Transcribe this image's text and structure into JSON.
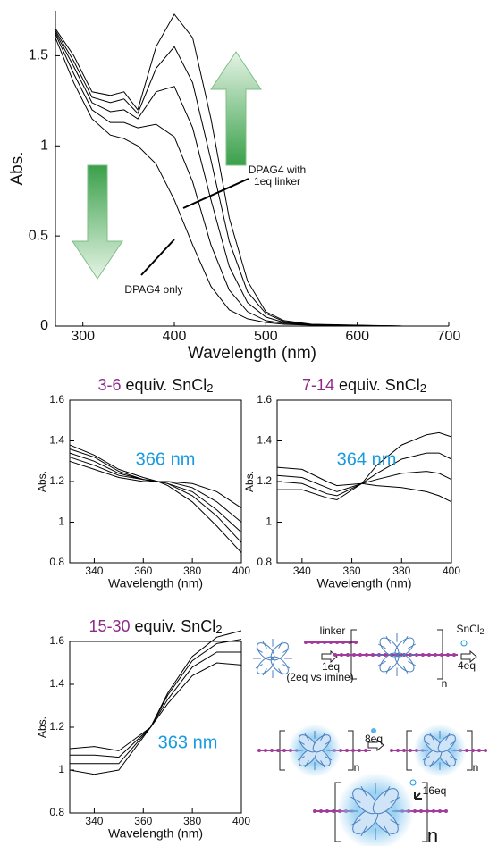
{
  "chart_data": [
    {
      "type": "line",
      "xlabel": "Wavelength (nm)",
      "ylabel": "Abs.",
      "x": [
        270,
        290,
        310,
        330,
        345,
        360,
        380,
        400,
        420,
        440,
        460,
        480,
        500,
        520,
        550,
        600,
        650,
        700
      ],
      "series": [
        {
          "color": "#000000",
          "values": [
            1.6,
            1.35,
            1.15,
            1.06,
            1.04,
            1.0,
            0.9,
            0.7,
            0.45,
            0.22,
            0.09,
            0.04,
            0.02,
            0.01,
            0.005,
            0,
            0,
            0
          ]
        },
        {
          "color": "#000000",
          "values": [
            1.62,
            1.4,
            1.2,
            1.13,
            1.13,
            1.1,
            1.12,
            1.05,
            0.8,
            0.45,
            0.2,
            0.08,
            0.03,
            0.015,
            0.007,
            0.002,
            0,
            0
          ]
        },
        {
          "color": "#000000",
          "values": [
            1.63,
            1.44,
            1.24,
            1.19,
            1.2,
            1.15,
            1.3,
            1.33,
            1.1,
            0.7,
            0.33,
            0.13,
            0.05,
            0.02,
            0.008,
            0.003,
            0,
            0
          ]
        },
        {
          "color": "#000000",
          "values": [
            1.64,
            1.47,
            1.27,
            1.24,
            1.26,
            1.18,
            1.43,
            1.55,
            1.35,
            0.92,
            0.47,
            0.19,
            0.07,
            0.025,
            0.009,
            0.004,
            0,
            0
          ]
        },
        {
          "color": "#000000",
          "values": [
            1.65,
            1.5,
            1.3,
            1.28,
            1.3,
            1.2,
            1.55,
            1.73,
            1.6,
            1.15,
            0.6,
            0.25,
            0.08,
            0.03,
            0.01,
            0.005,
            0,
            0
          ]
        }
      ],
      "xlim": [
        270,
        700
      ],
      "ylim": [
        0,
        1.75
      ],
      "xticks": [
        300,
        400,
        500,
        600,
        700
      ],
      "yticks": [
        0,
        0.5,
        1,
        1.5
      ],
      "annotations": [
        "DPAG4 with",
        "1eq linker",
        "DPAG4 only"
      ]
    },
    {
      "type": "line",
      "title": [
        "3-6",
        " equiv. SnCl",
        "2"
      ],
      "xlabel": "Wavelength (nm)",
      "ylabel": "Abs.",
      "x": [
        330,
        340,
        350,
        360,
        366,
        370,
        380,
        390,
        400
      ],
      "series": [
        {
          "color": "#000000",
          "values": [
            1.38,
            1.33,
            1.26,
            1.22,
            1.2,
            1.18,
            1.1,
            0.98,
            0.85
          ]
        },
        {
          "color": "#000000",
          "values": [
            1.36,
            1.32,
            1.25,
            1.21,
            1.2,
            1.19,
            1.13,
            1.03,
            0.9
          ]
        },
        {
          "color": "#000000",
          "values": [
            1.34,
            1.3,
            1.24,
            1.21,
            1.2,
            1.19,
            1.15,
            1.06,
            0.95
          ]
        },
        {
          "color": "#000000",
          "values": [
            1.32,
            1.28,
            1.23,
            1.21,
            1.2,
            1.2,
            1.17,
            1.1,
            1.0
          ]
        },
        {
          "color": "#000000",
          "values": [
            1.3,
            1.26,
            1.22,
            1.2,
            1.2,
            1.2,
            1.19,
            1.15,
            1.07
          ]
        }
      ],
      "xlim": [
        330,
        400
      ],
      "ylim": [
        0.8,
        1.6
      ],
      "xticks": [
        340,
        360,
        380,
        400
      ],
      "yticks": [
        0.8,
        1,
        1.2,
        1.4,
        1.6
      ],
      "annotations": [
        "366 nm"
      ]
    },
    {
      "type": "line",
      "title": [
        "7-14",
        " equiv. SnCl",
        "2"
      ],
      "xlabel": "Wavelength (nm)",
      "ylabel": "Abs.",
      "x": [
        330,
        340,
        350,
        354,
        364,
        370,
        380,
        390,
        395,
        400
      ],
      "series": [
        {
          "color": "#000000",
          "values": [
            1.27,
            1.26,
            1.2,
            1.18,
            1.19,
            1.18,
            1.17,
            1.15,
            1.13,
            1.1
          ]
        },
        {
          "color": "#000000",
          "values": [
            1.23,
            1.22,
            1.17,
            1.15,
            1.19,
            1.21,
            1.24,
            1.25,
            1.24,
            1.21
          ]
        },
        {
          "color": "#000000",
          "values": [
            1.2,
            1.19,
            1.14,
            1.13,
            1.19,
            1.24,
            1.31,
            1.34,
            1.34,
            1.31
          ]
        },
        {
          "color": "#000000",
          "values": [
            1.16,
            1.16,
            1.12,
            1.11,
            1.19,
            1.28,
            1.38,
            1.43,
            1.44,
            1.42
          ]
        }
      ],
      "xlim": [
        330,
        400
      ],
      "ylim": [
        0.8,
        1.6
      ],
      "xticks": [
        340,
        360,
        380,
        400
      ],
      "yticks": [
        0.8,
        1,
        1.2,
        1.4,
        1.6
      ],
      "annotations": [
        "364 nm"
      ]
    },
    {
      "type": "line",
      "title": [
        "15-30",
        " equiv. SnCl",
        "2"
      ],
      "xlabel": "Wavelength (nm)",
      "ylabel": "Abs.",
      "x": [
        330,
        340,
        350,
        363,
        370,
        380,
        390,
        400
      ],
      "series": [
        {
          "color": "#000000",
          "values": [
            1.1,
            1.11,
            1.09,
            1.2,
            1.31,
            1.44,
            1.5,
            1.49
          ]
        },
        {
          "color": "#000000",
          "values": [
            1.07,
            1.07,
            1.06,
            1.2,
            1.33,
            1.48,
            1.55,
            1.55
          ]
        },
        {
          "color": "#000000",
          "values": [
            1.03,
            1.03,
            1.03,
            1.2,
            1.35,
            1.51,
            1.59,
            1.61
          ]
        },
        {
          "color": "#000000",
          "values": [
            1.0,
            0.98,
            1.0,
            1.2,
            1.36,
            1.53,
            1.62,
            1.65
          ]
        }
      ],
      "xlim": [
        330,
        400
      ],
      "ylim": [
        0.8,
        1.6
      ],
      "xticks": [
        340,
        360,
        380,
        400
      ],
      "yticks": [
        0.8,
        1,
        1.2,
        1.4,
        1.6
      ],
      "annotations": [
        "363 nm"
      ]
    }
  ],
  "diagram": {
    "labels": [
      "linker",
      "1eq",
      "(2eq vs imine)",
      "4eq",
      "8eq",
      "16eq",
      "n",
      "n",
      "n",
      "n"
    ],
    "reagent": [
      "SnCl",
      "2"
    ]
  }
}
